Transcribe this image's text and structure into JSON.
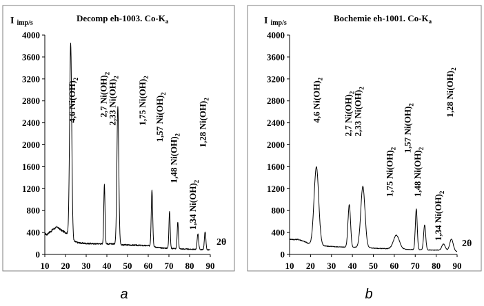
{
  "chart_data": [
    {
      "type": "line",
      "panel_label": "a",
      "title_prefix": "Decomp eh-1003. Co-K",
      "title_subscript": "a",
      "y_label_main": "I",
      "y_label_sub": "imp/s",
      "x_label": "2θ",
      "xlim": [
        10,
        90
      ],
      "ylim": [
        0,
        4000
      ],
      "x_ticks": [
        10,
        20,
        30,
        40,
        50,
        60,
        70,
        80,
        90
      ],
      "y_ticks": [
        0,
        400,
        800,
        1200,
        1600,
        2000,
        2400,
        2800,
        3200,
        3600,
        4000
      ],
      "baseline": [
        [
          10,
          380
        ],
        [
          11,
          360
        ],
        [
          12,
          400
        ],
        [
          13,
          420
        ],
        [
          14,
          460
        ],
        [
          15,
          480
        ],
        [
          16,
          500
        ],
        [
          17,
          470
        ],
        [
          18,
          440
        ],
        [
          19,
          420
        ],
        [
          20,
          400
        ],
        [
          21,
          380
        ],
        [
          22,
          350
        ],
        [
          23,
          280
        ],
        [
          24,
          240
        ],
        [
          26,
          215
        ],
        [
          28,
          205
        ],
        [
          30,
          200
        ],
        [
          34,
          195
        ],
        [
          38,
          195
        ],
        [
          42,
          190
        ],
        [
          44,
          195
        ],
        [
          46,
          180
        ],
        [
          48,
          175
        ],
        [
          52,
          170
        ],
        [
          56,
          165
        ],
        [
          58,
          160
        ],
        [
          60,
          160
        ],
        [
          62,
          150
        ],
        [
          64,
          130
        ],
        [
          66,
          120
        ],
        [
          68,
          115
        ],
        [
          72,
          110
        ],
        [
          76,
          100
        ],
        [
          80,
          95
        ],
        [
          84,
          90
        ],
        [
          88,
          85
        ],
        [
          90,
          80
        ]
      ],
      "peaks": [
        {
          "x": 22.5,
          "y": 3860,
          "w": 0.5
        },
        {
          "x": 38.8,
          "y": 1280,
          "w": 0.3
        },
        {
          "x": 45.3,
          "y": 2700,
          "w": 0.45
        },
        {
          "x": 61.8,
          "y": 1180,
          "w": 0.35
        },
        {
          "x": 70.3,
          "y": 790,
          "w": 0.3
        },
        {
          "x": 74.3,
          "y": 590,
          "w": 0.3
        },
        {
          "x": 84.0,
          "y": 380,
          "w": 0.35
        },
        {
          "x": 87.5,
          "y": 420,
          "w": 0.35
        }
      ],
      "peak_labels": [
        {
          "text": "4,6 Ni(OH)",
          "sub": "2",
          "x": 24.6,
          "y": 2400
        },
        {
          "text": "2,7 Ni(OH)",
          "sub": "2",
          "x": 39.8,
          "y": 2500
        },
        {
          "text": "2,33 Ni(OH)",
          "sub": "2",
          "x": 44.2,
          "y": 2350
        },
        {
          "text": "1,75 Ni(OH)",
          "sub": "2",
          "x": 58.7,
          "y": 2350
        },
        {
          "text": "1,57 Ni(OH)",
          "sub": "2",
          "x": 67.0,
          "y": 2050
        },
        {
          "text": "1,48 Ni(OH)",
          "sub": "2",
          "x": 73.8,
          "y": 1300
        },
        {
          "text": "1,34 Ni(OH)",
          "sub": "2",
          "x": 83.0,
          "y": 450
        },
        {
          "text": "1,28 Ni(OH)",
          "sub": "2",
          "x": 87.8,
          "y": 1950
        }
      ]
    },
    {
      "type": "line",
      "panel_label": "b",
      "title_prefix": "Bochemie eh-1001.  Co-K",
      "title_subscript": "a",
      "y_label_main": "I",
      "y_label_sub": "imp/s",
      "x_label": "2θ",
      "xlim": [
        10,
        90
      ],
      "ylim": [
        0,
        4000
      ],
      "x_ticks": [
        10,
        20,
        30,
        40,
        50,
        60,
        70,
        80,
        90
      ],
      "y_ticks": [
        0,
        400,
        800,
        1200,
        1600,
        2000,
        2400,
        2800,
        3200,
        3600,
        4000
      ],
      "baseline": [
        [
          10,
          280
        ],
        [
          12,
          270
        ],
        [
          14,
          275
        ],
        [
          16,
          250
        ],
        [
          18,
          220
        ],
        [
          19,
          200
        ],
        [
          20,
          180
        ],
        [
          24,
          160
        ],
        [
          28,
          150
        ],
        [
          32,
          140
        ],
        [
          36,
          135
        ],
        [
          40,
          130
        ],
        [
          44,
          130
        ],
        [
          48,
          120
        ],
        [
          52,
          110
        ],
        [
          56,
          105
        ],
        [
          60,
          100
        ],
        [
          64,
          95
        ],
        [
          68,
          90
        ],
        [
          72,
          85
        ],
        [
          76,
          80
        ],
        [
          80,
          80
        ],
        [
          84,
          75
        ],
        [
          88,
          70
        ],
        [
          90,
          50
        ]
      ],
      "peaks": [
        {
          "x": 22.8,
          "y": 1600,
          "w": 1.1
        },
        {
          "x": 38.5,
          "y": 910,
          "w": 0.6
        },
        {
          "x": 45.0,
          "y": 1240,
          "w": 1.0
        },
        {
          "x": 61.0,
          "y": 350,
          "w": 1.4
        },
        {
          "x": 70.5,
          "y": 830,
          "w": 0.45
        },
        {
          "x": 74.5,
          "y": 540,
          "w": 0.5
        },
        {
          "x": 83.5,
          "y": 190,
          "w": 0.8
        },
        {
          "x": 87.3,
          "y": 280,
          "w": 0.8
        }
      ],
      "peak_labels": [
        {
          "text": "4,6 Ni(OH)",
          "sub": "2",
          "x": 24.4,
          "y": 2400
        },
        {
          "text": "2,7 Ni(OH)",
          "sub": "2",
          "x": 39.4,
          "y": 2150
        },
        {
          "text": "2,33 Ni(OH)",
          "sub": "2",
          "x": 44.0,
          "y": 2150
        },
        {
          "text": "1,75 Ni(OH)",
          "sub": "2",
          "x": 59.2,
          "y": 1050
        },
        {
          "text": "1,57 Ni(OH)",
          "sub": "2",
          "x": 67.7,
          "y": 1850
        },
        {
          "text": "1,48 Ni(OH)",
          "sub": "2",
          "x": 72.6,
          "y": 1050
        },
        {
          "text": "1,34 Ni(OH)",
          "sub": "2",
          "x": 82.4,
          "y": 250
        },
        {
          "text": "1,28 Ni(OH)",
          "sub": "2",
          "x": 88.0,
          "y": 2500
        }
      ]
    }
  ]
}
